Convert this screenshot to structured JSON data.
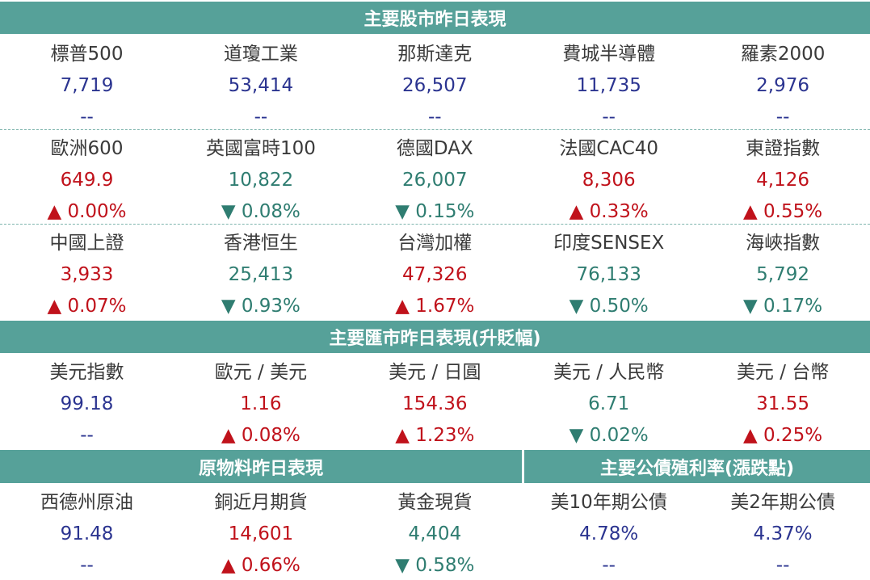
{
  "sections": [
    {
      "title": "主要股市昨日表現",
      "rows": [
        [
          {
            "name": "標普500",
            "value": "7,719",
            "change": "--"
          },
          {
            "name": "道瓊工業",
            "value": "53,414",
            "change": "--"
          },
          {
            "name": "那斯達克",
            "value": "26,507",
            "change": "--"
          },
          {
            "name": "費城半導體",
            "value": "11,735",
            "change": "--"
          },
          {
            "name": "羅素2000",
            "value": "2,976",
            "change": "--"
          }
        ],
        [
          {
            "name": "歐洲600",
            "value": "649.9",
            "change": "▲ 0.00%"
          },
          {
            "name": "英國富時100",
            "value": "10,822",
            "change": "▼ 0.08%"
          },
          {
            "name": "德國DAX",
            "value": "26,007",
            "change": "▼ 0.15%"
          },
          {
            "name": "法國CAC40",
            "value": "8,306",
            "change": "▲ 0.33%"
          },
          {
            "name": "東證指數",
            "value": "4,126",
            "change": "▲ 0.55%"
          }
        ],
        [
          {
            "name": "中國上證",
            "value": "3,933",
            "change": "▲ 0.07%"
          },
          {
            "name": "香港恒生",
            "value": "25,413",
            "change": "▼ 0.93%"
          },
          {
            "name": "台灣加權",
            "value": "47,326",
            "change": "▲ 1.67%"
          },
          {
            "name": "印度SENSEX",
            "value": "76,133",
            "change": "▼ 0.50%"
          },
          {
            "name": "海峽指數",
            "value": "5,792",
            "change": "▼ 0.17%"
          }
        ]
      ]
    },
    {
      "title": "主要匯市昨日表現(升貶幅)",
      "rows": [
        [
          {
            "name": "美元指數",
            "value": "99.18",
            "change": "--"
          },
          {
            "name": "歐元 / 美元",
            "value": "1.16",
            "change": "▲ 0.08%"
          },
          {
            "name": "美元 / 日圓",
            "value": "154.36",
            "change": "▲ 1.23%"
          },
          {
            "name": "美元 / 人民幣",
            "value": "6.71",
            "change": "▼ 0.02%"
          },
          {
            "name": "美元 / 台幣",
            "value": "31.55",
            "change": "▲ 0.25%"
          }
        ]
      ]
    },
    {
      "title": "原物料昨日表現",
      "rows": [
        [
          {
            "name": "西德州原油",
            "value": "91.48",
            "change": "--"
          },
          {
            "name": "銅近月期貨",
            "value": "14,601",
            "change": "▲ 0.66%"
          },
          {
            "name": "黃金現貨",
            "value": "4,404",
            "change": "▼ 0.58%"
          }
        ]
      ]
    },
    {
      "title": "主要公債殖利率(漲跌點)",
      "rows": [
        [
          {
            "name": "美10年期公債",
            "value": "4.78%",
            "change": "--"
          },
          {
            "name": "美2年期公債",
            "value": "4.37%",
            "change": "--"
          }
        ]
      ]
    }
  ]
}
